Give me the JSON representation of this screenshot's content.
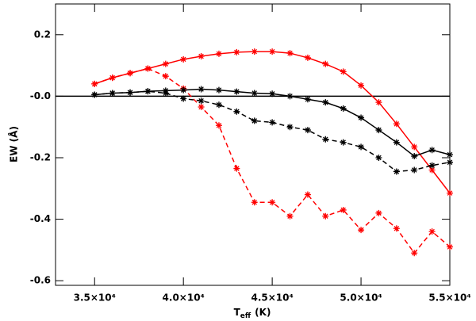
{
  "chart_data": {
    "type": "line",
    "xlabel": [
      "T",
      "eff",
      "(K)"
    ],
    "ylabel": "EW (Å)",
    "x": [
      35000,
      36000,
      37000,
      38000,
      39000,
      40000,
      41000,
      42000,
      43000,
      44000,
      45000,
      46000,
      47000,
      48000,
      49000,
      50000,
      51000,
      52000,
      53000,
      54000,
      55000
    ],
    "series": [
      {
        "color": "#ff0000",
        "linestyle": "solid",
        "values": [
          0.04,
          0.06,
          0.075,
          0.09,
          0.105,
          0.12,
          0.13,
          0.138,
          0.143,
          0.145,
          0.145,
          0.14,
          0.125,
          0.105,
          0.08,
          0.035,
          -0.02,
          -0.09,
          -0.165,
          -0.24,
          -0.315
        ]
      },
      {
        "color": "#ff0000",
        "linestyle": "dashed",
        "values": [
          0.04,
          0.06,
          0.075,
          0.09,
          0.065,
          0.025,
          -0.035,
          -0.095,
          -0.235,
          -0.345,
          -0.345,
          -0.39,
          -0.32,
          -0.39,
          -0.37,
          -0.435,
          -0.38,
          -0.43,
          -0.51,
          -0.44,
          -0.49
        ]
      },
      {
        "color": "#000000",
        "linestyle": "solid",
        "values": [
          0.005,
          0.01,
          0.012,
          0.016,
          0.018,
          0.02,
          0.023,
          0.02,
          0.015,
          0.01,
          0.008,
          0.0,
          -0.01,
          -0.02,
          -0.04,
          -0.07,
          -0.11,
          -0.15,
          -0.195,
          -0.175,
          -0.19
        ]
      },
      {
        "color": "#000000",
        "linestyle": "dashed",
        "values": [
          0.005,
          0.01,
          0.012,
          0.016,
          0.01,
          -0.008,
          -0.015,
          -0.028,
          -0.05,
          -0.08,
          -0.085,
          -0.1,
          -0.11,
          -0.14,
          -0.15,
          -0.165,
          -0.2,
          -0.245,
          -0.24,
          -0.225,
          -0.215
        ]
      }
    ],
    "hline": 0,
    "marker": "asterisk",
    "xlim": [
      32800,
      55000
    ],
    "xticks": [
      {
        "value": 35000,
        "label": "3.5×10⁴"
      },
      {
        "value": 40000,
        "label": "4.0×10⁴"
      },
      {
        "value": 45000,
        "label": "4.5×10⁴"
      },
      {
        "value": 50000,
        "label": "5.0×10⁴"
      },
      {
        "value": 55000,
        "label": "5.5×10⁴"
      }
    ],
    "ylim": [
      -0.615,
      0.3
    ],
    "yticks": [
      0.2,
      {
        "value": 0,
        "label": "-0.0"
      },
      -0.2,
      -0.4,
      -0.6
    ]
  }
}
